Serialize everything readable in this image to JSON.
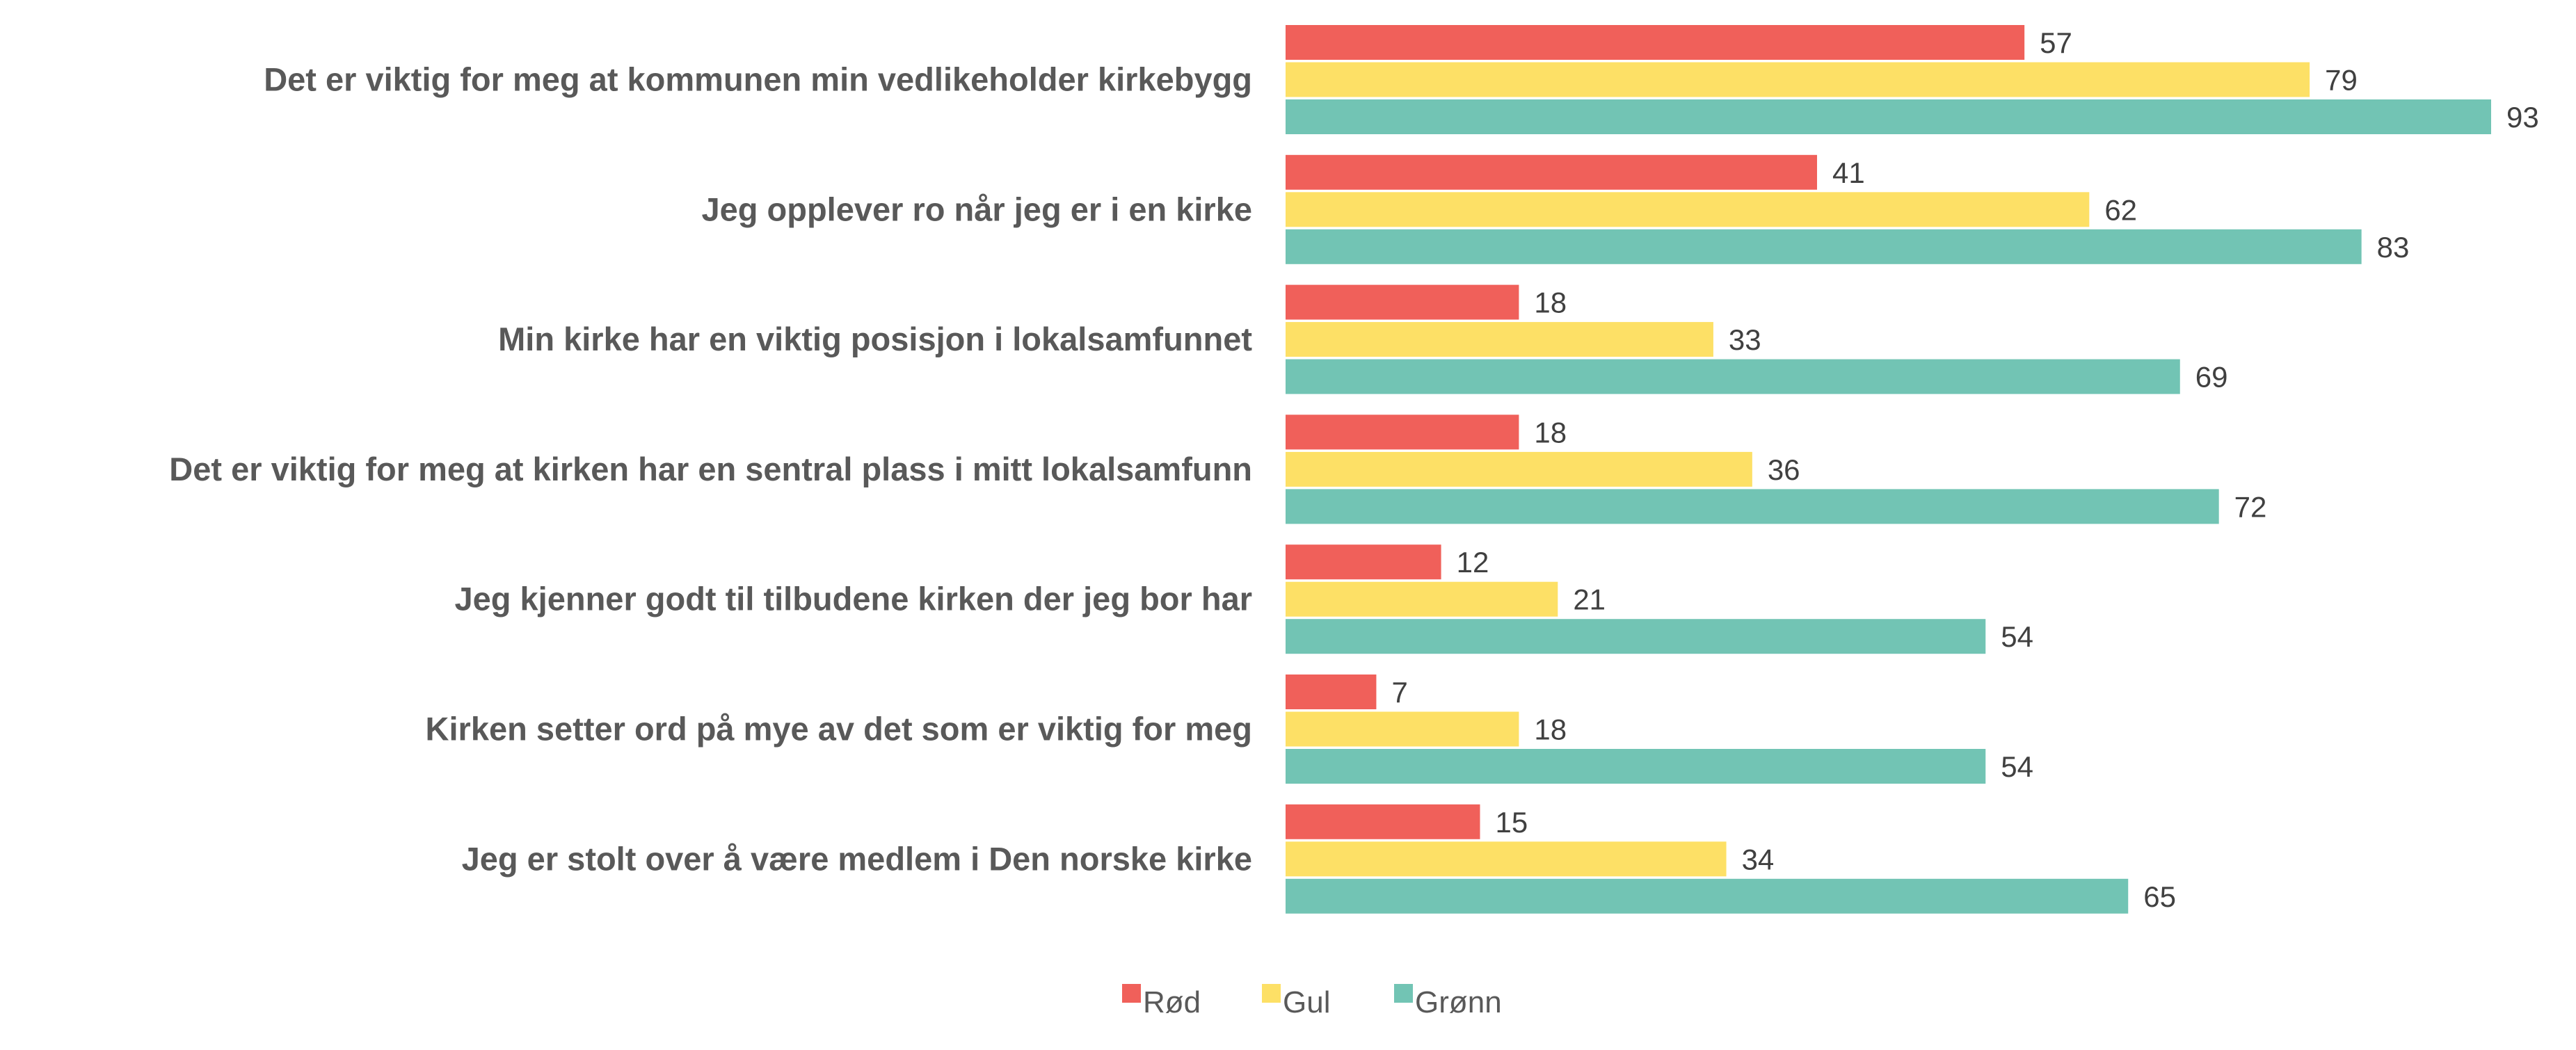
{
  "chart_data": {
    "type": "bar",
    "orientation": "horizontal",
    "categories": [
      "Det er viktig for meg at kommunen min vedlikeholder kirkebygg",
      "Jeg opplever ro når jeg er i en kirke",
      "Min kirke har en viktig posisjon i lokalsamfunnet",
      "Det er viktig for meg at kirken har en sentral plass i mitt lokalsamfunn",
      "Jeg kjenner godt til tilbudene kirken der jeg bor har",
      "Kirken setter ord på mye av det som er viktig for meg",
      "Jeg er stolt over å være medlem i Den norske kirke"
    ],
    "series": [
      {
        "name": "Rød",
        "color": "#F0605A",
        "values": [
          57,
          41,
          18,
          18,
          12,
          7,
          15
        ]
      },
      {
        "name": "Gul",
        "color": "#FDE066",
        "values": [
          79,
          62,
          33,
          36,
          21,
          18,
          34
        ]
      },
      {
        "name": "Grønn",
        "color": "#72C4B4",
        "values": [
          93,
          83,
          69,
          72,
          54,
          54,
          65
        ]
      }
    ],
    "xlim": [
      0,
      93
    ],
    "grid": false,
    "data_labels": true,
    "legend_position": "bottom"
  }
}
